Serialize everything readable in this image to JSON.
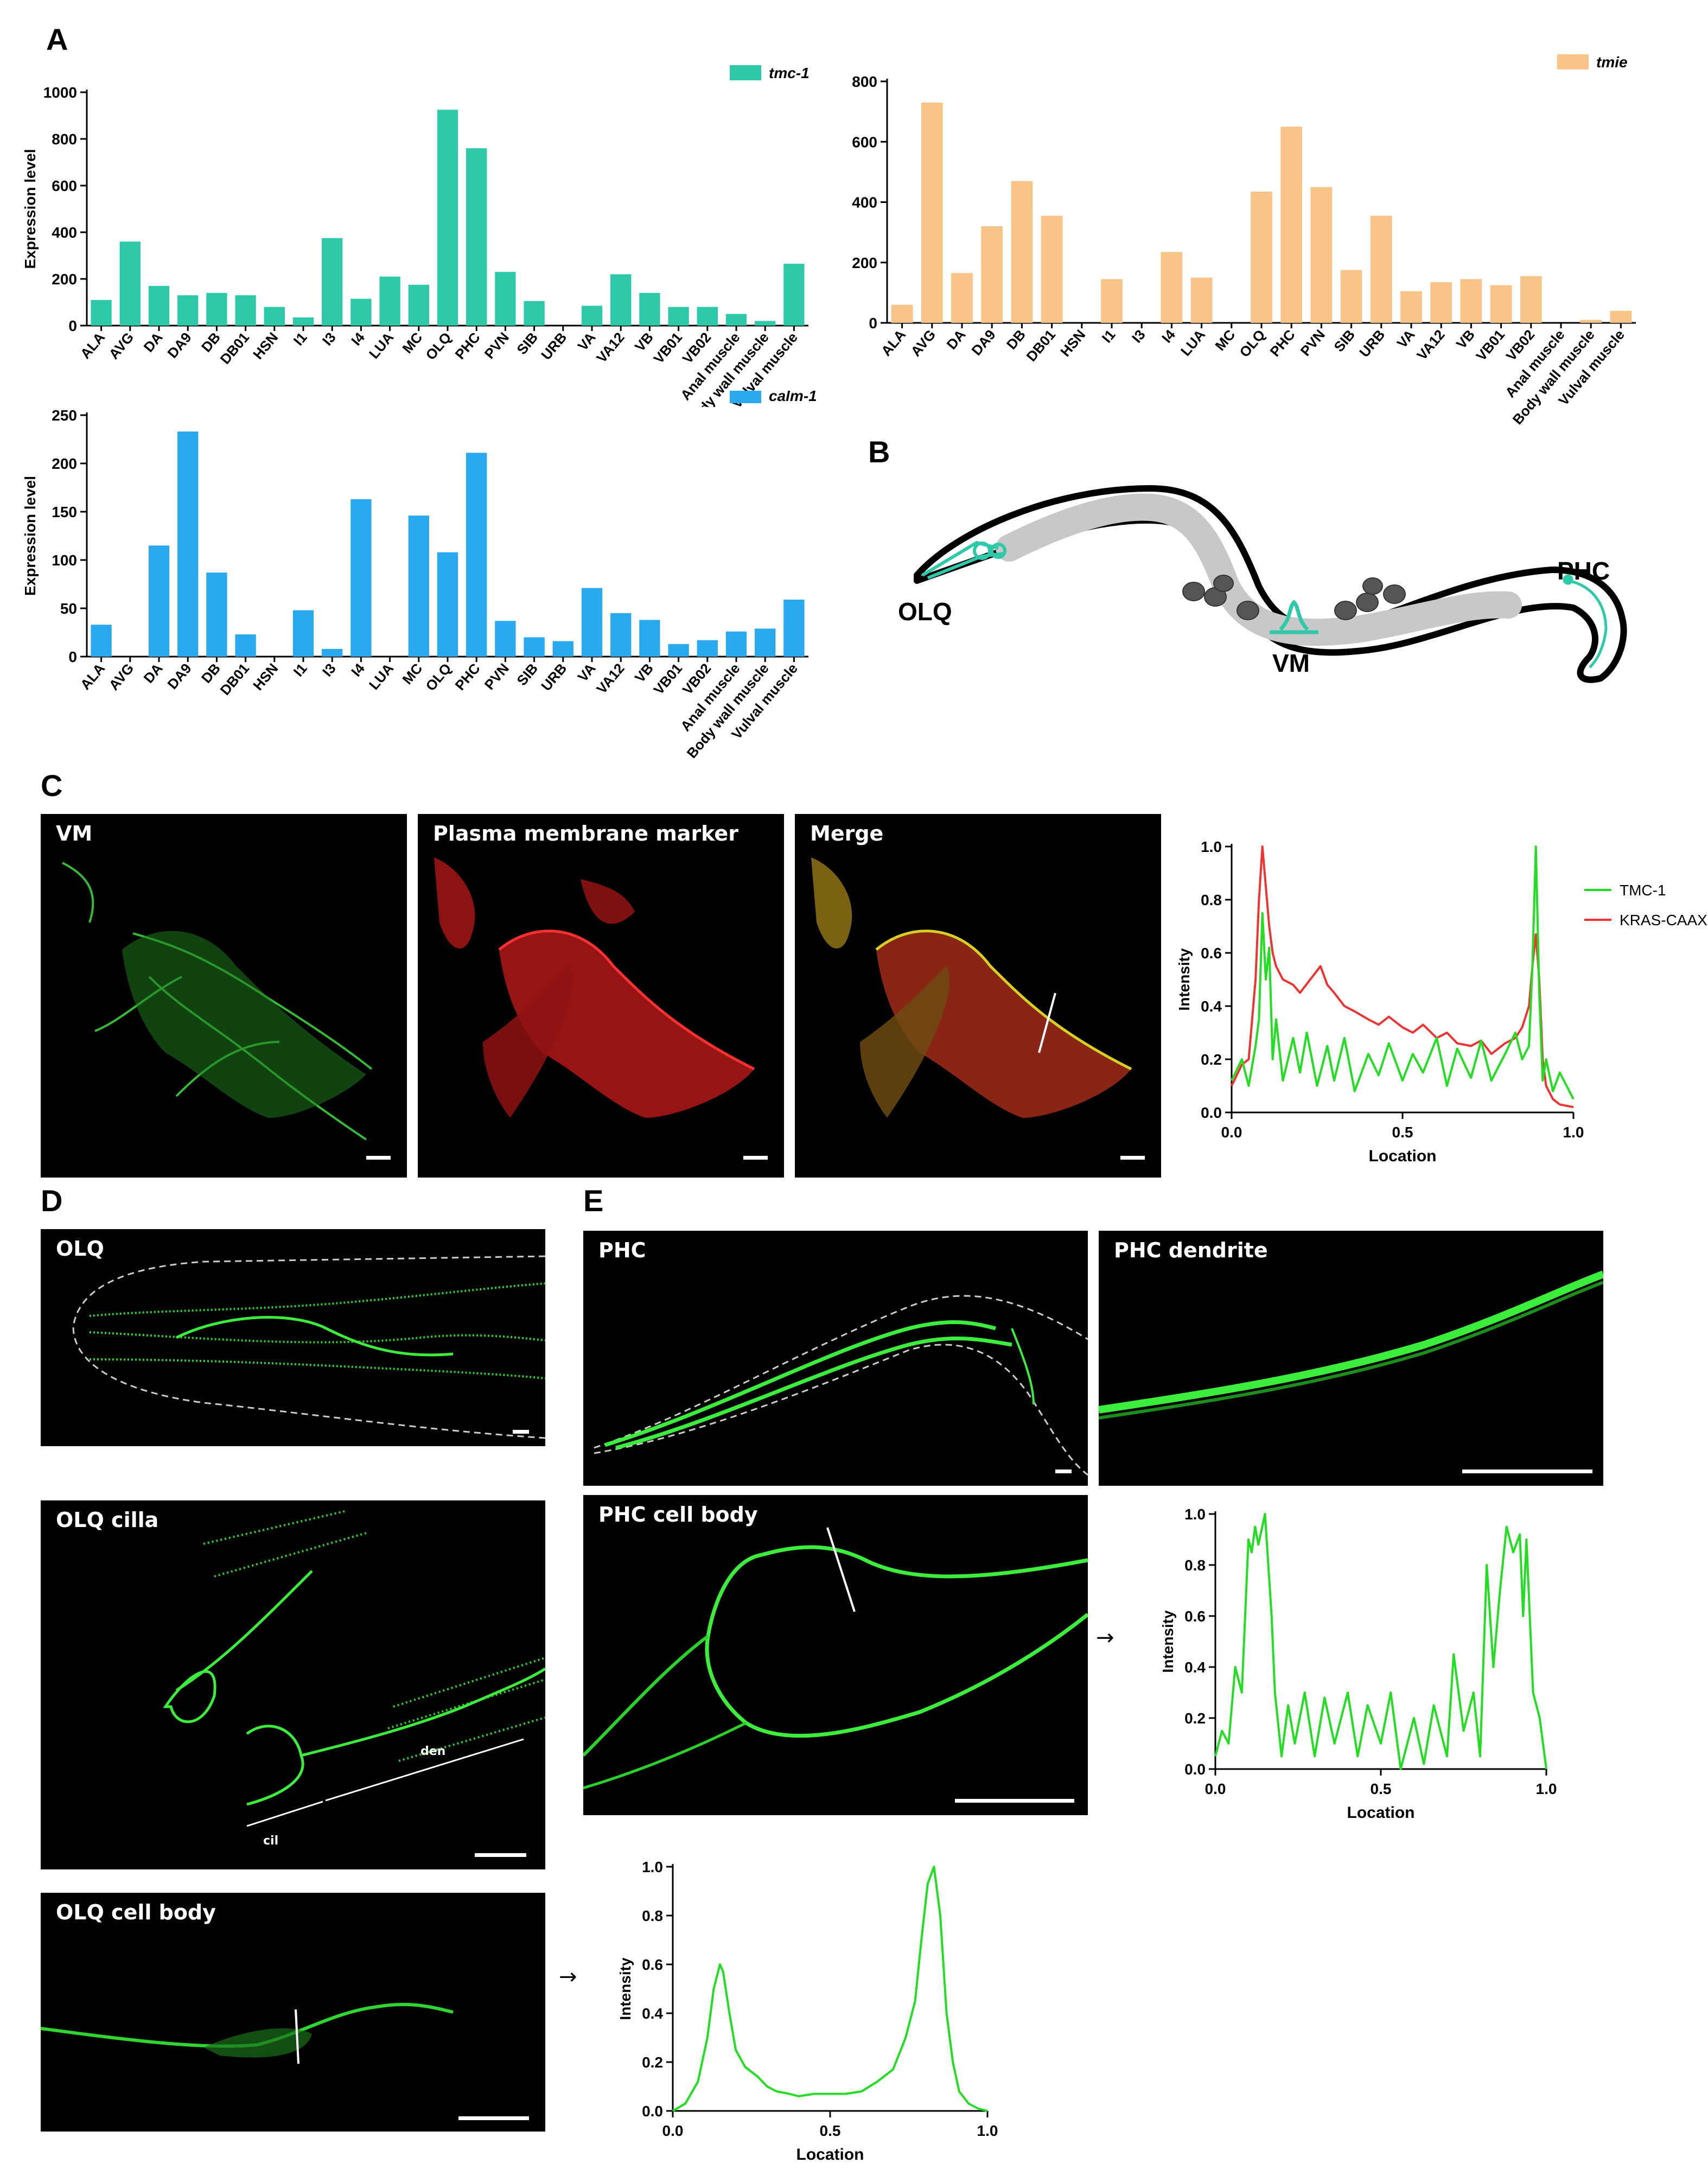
{
  "panel_labels": {
    "A": "A",
    "B": "B",
    "C": "C",
    "D": "D",
    "E": "E"
  },
  "colors": {
    "tmc1": "#2ec9a8",
    "tmie": "#f9c487",
    "calm1": "#2aa8f0",
    "tmc_trace": "#22dd22",
    "kras_trace": "#ee3333"
  },
  "schematic": {
    "olq": "OLQ",
    "vm": "VM",
    "phc": "PHC"
  },
  "micrographs": {
    "vm": "VM",
    "pm": "Plasma membrane marker",
    "merge": "Merge",
    "olq": "OLQ",
    "olq_cilia": "OLQ cilla",
    "olq_cell_body": "OLQ cell body",
    "phc": "PHC",
    "phc_dendrite": "PHC dendrite",
    "phc_cell_body": "PHC cell body",
    "den": "den",
    "cil": "cil"
  },
  "arrows": {
    "glyph": "→"
  },
  "chart_data": [
    {
      "id": "tmc1",
      "type": "bar",
      "title": "",
      "legend": "tmc-1",
      "legend_position": "top-right",
      "xlabel": "",
      "ylabel": "Expression level",
      "ylim": [
        0,
        1000
      ],
      "yticks": [
        0,
        200,
        400,
        600,
        800,
        1000
      ],
      "categories": [
        "ALA",
        "AVG",
        "DA",
        "DA9",
        "DB",
        "DB01",
        "HSN",
        "I1",
        "I3",
        "I4",
        "LUA",
        "MC",
        "OLQ",
        "PHC",
        "PVN",
        "SIB",
        "URB",
        "VA",
        "VA12",
        "VB",
        "VB01",
        "VB02",
        "Anal muscle",
        "Body wall muscle",
        "Vulval muscle"
      ],
      "values": [
        110,
        360,
        170,
        130,
        140,
        130,
        80,
        35,
        375,
        115,
        210,
        175,
        925,
        760,
        230,
        105,
        0,
        85,
        220,
        140,
        80,
        80,
        50,
        20,
        265
      ]
    },
    {
      "id": "tmie",
      "type": "bar",
      "title": "",
      "legend": "tmie",
      "legend_position": "top-right",
      "xlabel": "",
      "ylabel": "Expression level",
      "ylim": [
        0,
        800
      ],
      "yticks": [
        0,
        200,
        400,
        600,
        800
      ],
      "categories": [
        "ALA",
        "AVG",
        "DA",
        "DA9",
        "DB",
        "DB01",
        "HSN",
        "I1",
        "I3",
        "I4",
        "LUA",
        "MC",
        "OLQ",
        "PHC",
        "PVN",
        "SIB",
        "URB",
        "VA",
        "VA12",
        "VB",
        "VB01",
        "VB02",
        "Anal muscle",
        "Body wall muscle",
        "Vulval muscle"
      ],
      "values": [
        60,
        730,
        165,
        320,
        470,
        355,
        0,
        145,
        0,
        235,
        150,
        0,
        435,
        650,
        450,
        175,
        355,
        105,
        135,
        145,
        125,
        155,
        0,
        10,
        40
      ]
    },
    {
      "id": "calm1",
      "type": "bar",
      "title": "",
      "legend": "calm-1",
      "legend_position": "top-right",
      "xlabel": "",
      "ylabel": "Expression level",
      "ylim": [
        0,
        250
      ],
      "yticks": [
        0,
        50,
        100,
        150,
        200,
        250
      ],
      "categories": [
        "ALA",
        "AVG",
        "DA",
        "DA9",
        "DB",
        "DB01",
        "HSN",
        "I1",
        "I3",
        "I4",
        "LUA",
        "MC",
        "OLQ",
        "PHC",
        "PVN",
        "SIB",
        "URB",
        "VA",
        "VA12",
        "VB",
        "VB01",
        "VB02",
        "Anal muscle",
        "Body wall muscle",
        "Vulval muscle"
      ],
      "values": [
        33,
        0,
        115,
        233,
        87,
        23,
        0,
        48,
        8,
        163,
        0,
        146,
        108,
        211,
        37,
        20,
        16,
        71,
        45,
        38,
        13,
        17,
        26,
        29,
        59
      ]
    },
    {
      "id": "vm_profile",
      "type": "line",
      "title": "",
      "xlabel": "Location",
      "ylabel": "Intensity",
      "xlim": [
        0,
        1
      ],
      "ylim": [
        0,
        1
      ],
      "xticks": [
        0,
        0.5,
        1
      ],
      "xtick_labels": [
        "0.0",
        "0.5",
        "1.0"
      ],
      "yticks": [
        0,
        0.2,
        0.4,
        0.6,
        0.8,
        1.0
      ],
      "ytick_labels": [
        "0.0",
        "0.2",
        "0.4",
        "0.6",
        "0.8",
        "1.0"
      ],
      "legend_position": "top-right",
      "series": [
        {
          "name": "TMC-1",
          "x": [
            0,
            0.03,
            0.05,
            0.07,
            0.08,
            0.09,
            0.1,
            0.11,
            0.12,
            0.13,
            0.15,
            0.18,
            0.2,
            0.22,
            0.25,
            0.28,
            0.3,
            0.33,
            0.36,
            0.4,
            0.43,
            0.46,
            0.5,
            0.53,
            0.56,
            0.6,
            0.63,
            0.66,
            0.7,
            0.73,
            0.76,
            0.8,
            0.83,
            0.85,
            0.87,
            0.88,
            0.89,
            0.9,
            0.91,
            0.92,
            0.94,
            0.96,
            1.0
          ],
          "y": [
            0.12,
            0.2,
            0.1,
            0.25,
            0.35,
            0.75,
            0.5,
            0.62,
            0.2,
            0.35,
            0.12,
            0.28,
            0.15,
            0.3,
            0.1,
            0.25,
            0.12,
            0.28,
            0.08,
            0.22,
            0.14,
            0.26,
            0.12,
            0.22,
            0.15,
            0.28,
            0.1,
            0.24,
            0.13,
            0.27,
            0.12,
            0.22,
            0.3,
            0.2,
            0.25,
            0.55,
            1.0,
            0.45,
            0.12,
            0.2,
            0.08,
            0.15,
            0.05
          ]
        },
        {
          "name": "KRAS-CAAX",
          "x": [
            0,
            0.03,
            0.05,
            0.07,
            0.08,
            0.09,
            0.1,
            0.11,
            0.12,
            0.13,
            0.15,
            0.18,
            0.2,
            0.23,
            0.26,
            0.28,
            0.3,
            0.33,
            0.36,
            0.4,
            0.43,
            0.46,
            0.5,
            0.53,
            0.56,
            0.6,
            0.63,
            0.66,
            0.7,
            0.73,
            0.76,
            0.8,
            0.83,
            0.85,
            0.87,
            0.88,
            0.89,
            0.9,
            0.91,
            0.92,
            0.94,
            0.96,
            1.0
          ],
          "y": [
            0.1,
            0.18,
            0.2,
            0.5,
            0.8,
            1.0,
            0.85,
            0.7,
            0.6,
            0.55,
            0.5,
            0.48,
            0.45,
            0.5,
            0.55,
            0.48,
            0.45,
            0.4,
            0.38,
            0.35,
            0.33,
            0.36,
            0.32,
            0.3,
            0.33,
            0.28,
            0.3,
            0.26,
            0.25,
            0.27,
            0.22,
            0.26,
            0.28,
            0.32,
            0.4,
            0.55,
            0.67,
            0.5,
            0.2,
            0.1,
            0.05,
            0.03,
            0.02
          ]
        }
      ]
    },
    {
      "id": "phc_profile",
      "type": "line",
      "title": "",
      "xlabel": "Location",
      "ylabel": "Intensity",
      "xlim": [
        0,
        1
      ],
      "ylim": [
        0,
        1
      ],
      "xticks": [
        0,
        0.5,
        1
      ],
      "xtick_labels": [
        "0.0",
        "0.5",
        "1.0"
      ],
      "yticks": [
        0,
        0.2,
        0.4,
        0.6,
        0.8,
        1.0
      ],
      "ytick_labels": [
        "0.0",
        "0.2",
        "0.4",
        "0.6",
        "0.8",
        "1.0"
      ],
      "series": [
        {
          "name": "intensity",
          "x": [
            0,
            0.02,
            0.04,
            0.06,
            0.08,
            0.1,
            0.11,
            0.12,
            0.13,
            0.15,
            0.17,
            0.18,
            0.2,
            0.22,
            0.24,
            0.27,
            0.3,
            0.33,
            0.36,
            0.4,
            0.43,
            0.46,
            0.5,
            0.53,
            0.56,
            0.6,
            0.63,
            0.66,
            0.7,
            0.72,
            0.75,
            0.78,
            0.8,
            0.82,
            0.84,
            0.86,
            0.88,
            0.9,
            0.92,
            0.93,
            0.94,
            0.96,
            0.98,
            1.0
          ],
          "y": [
            0.05,
            0.15,
            0.1,
            0.4,
            0.3,
            0.9,
            0.85,
            0.95,
            0.88,
            1.0,
            0.6,
            0.3,
            0.05,
            0.25,
            0.1,
            0.3,
            0.05,
            0.28,
            0.1,
            0.3,
            0.05,
            0.25,
            0.1,
            0.3,
            0.0,
            0.2,
            0.02,
            0.25,
            0.05,
            0.45,
            0.15,
            0.3,
            0.05,
            0.8,
            0.4,
            0.7,
            0.95,
            0.85,
            0.92,
            0.6,
            0.9,
            0.3,
            0.2,
            0.0
          ]
        }
      ]
    },
    {
      "id": "olq_profile",
      "type": "line",
      "title": "",
      "xlabel": "Location",
      "ylabel": "Intensity",
      "xlim": [
        0,
        1
      ],
      "ylim": [
        0,
        1
      ],
      "xticks": [
        0,
        0.5,
        1
      ],
      "xtick_labels": [
        "0.0",
        "0.5",
        "1.0"
      ],
      "yticks": [
        0,
        0.2,
        0.4,
        0.6,
        0.8,
        1.0
      ],
      "ytick_labels": [
        "0.0",
        "0.2",
        "0.4",
        "0.6",
        "0.8",
        "1.0"
      ],
      "series": [
        {
          "name": "intensity",
          "x": [
            0,
            0.04,
            0.08,
            0.11,
            0.13,
            0.15,
            0.16,
            0.18,
            0.2,
            0.23,
            0.27,
            0.3,
            0.33,
            0.37,
            0.4,
            0.45,
            0.5,
            0.55,
            0.6,
            0.65,
            0.7,
            0.74,
            0.77,
            0.79,
            0.81,
            0.83,
            0.85,
            0.87,
            0.89,
            0.91,
            0.94,
            0.97,
            1.0
          ],
          "y": [
            0.0,
            0.03,
            0.12,
            0.3,
            0.5,
            0.6,
            0.57,
            0.4,
            0.25,
            0.18,
            0.14,
            0.1,
            0.08,
            0.07,
            0.06,
            0.07,
            0.07,
            0.07,
            0.08,
            0.12,
            0.17,
            0.3,
            0.45,
            0.7,
            0.93,
            1.0,
            0.8,
            0.4,
            0.2,
            0.08,
            0.03,
            0.01,
            0.0
          ]
        }
      ]
    }
  ]
}
